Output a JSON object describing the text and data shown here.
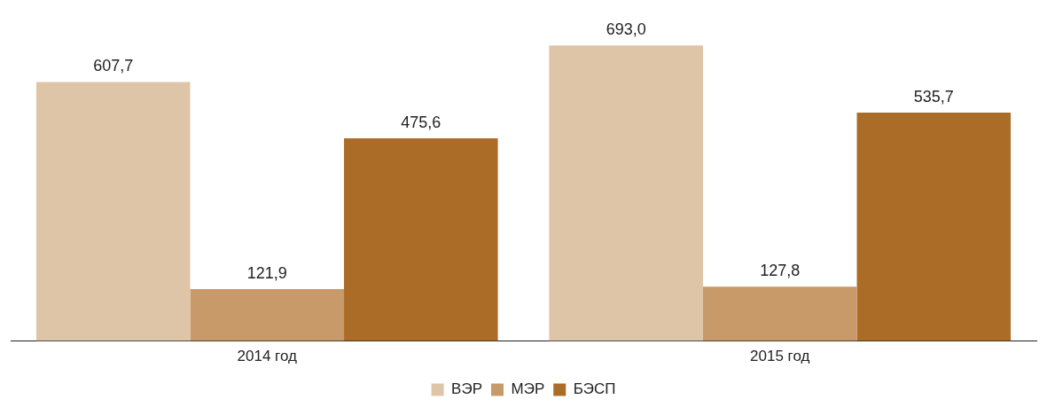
{
  "chart_data": {
    "type": "bar",
    "categories": [
      "2014 год",
      "2015 год"
    ],
    "series": [
      {
        "name": "ВЭР",
        "color": "#dfc5a8",
        "values": [
          607.7,
          693.0
        ],
        "value_labels": [
          "607,7",
          "693,0"
        ]
      },
      {
        "name": "МЭР",
        "color": "#c89a6a",
        "values": [
          121.9,
          127.8
        ],
        "value_labels": [
          "121,9",
          "127,8"
        ]
      },
      {
        "name": "БЭСП",
        "color": "#ab6c27",
        "values": [
          475.6,
          535.7
        ],
        "value_labels": [
          "475,6",
          "535,7"
        ]
      }
    ],
    "legend": "bottom",
    "grid": false
  }
}
